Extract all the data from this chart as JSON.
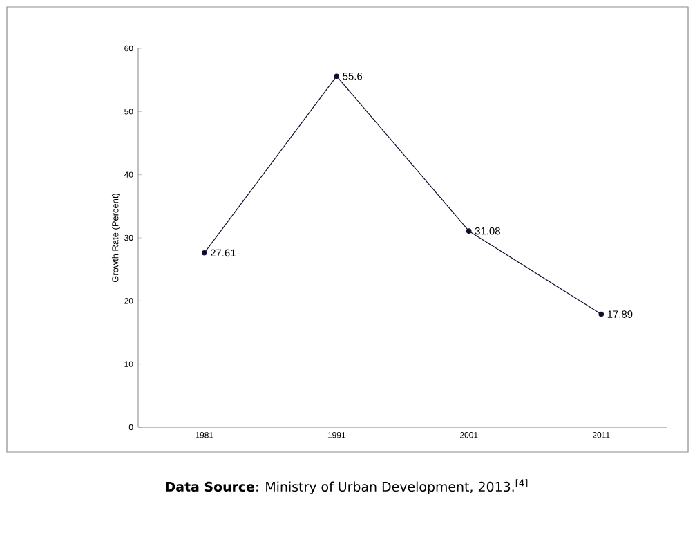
{
  "chart_data": {
    "type": "line",
    "ylabel": "Growth Rate (Percent)",
    "categories": [
      "1981",
      "1991",
      "2001",
      "2011"
    ],
    "values": [
      27.61,
      55.6,
      31.08,
      17.89
    ],
    "color": "#0d0d2b",
    "marker": "circle",
    "line_style": "solid",
    "ylim": [
      0,
      60
    ],
    "yticks": [
      0,
      10,
      20,
      30,
      40,
      50,
      60
    ],
    "data_labels": true,
    "annotations": [
      "**Data Source**: Ministry of Urban Development, 2013.$^{[4]}$"
    ]
  }
}
